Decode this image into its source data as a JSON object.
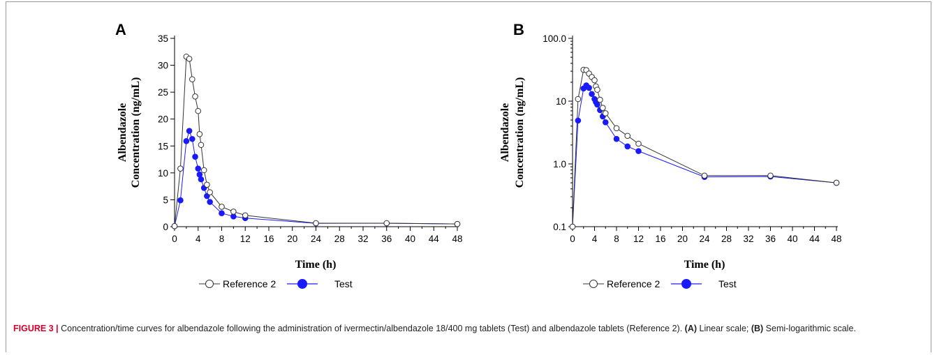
{
  "chart_data": [
    {
      "type": "line",
      "panel": "A",
      "yscale": "linear",
      "xlabel": "Time (h)",
      "ylabel": [
        "Albendazole",
        "Concentration (ng/mL)"
      ],
      "xlim": [
        0,
        48
      ],
      "ylim": [
        0,
        35
      ],
      "xticks": [
        0,
        4,
        8,
        12,
        16,
        20,
        24,
        28,
        32,
        36,
        40,
        44,
        48
      ],
      "yticks": [
        0,
        5,
        10,
        15,
        20,
        25,
        30,
        35
      ],
      "ytick_labels": [
        "0",
        "5",
        "10",
        "15",
        "20",
        "25",
        "30",
        "35"
      ],
      "legend_position": "bottom",
      "series": [
        {
          "name": "Reference 2",
          "marker": "open-circle",
          "color": "#333333",
          "x": [
            0,
            1,
            2,
            2.5,
            3,
            3.5,
            4,
            4.25,
            4.5,
            5,
            5.5,
            6,
            8,
            10,
            12,
            24,
            36,
            48
          ],
          "y": [
            0.1,
            10.8,
            31.6,
            31.2,
            27.4,
            24.2,
            21.5,
            17.2,
            15.2,
            10.5,
            7.8,
            6.4,
            3.7,
            2.8,
            2.1,
            0.65,
            0.65,
            0.5
          ]
        },
        {
          "name": "Test",
          "marker": "filled-circle",
          "color": "#1a1aff",
          "x": [
            0,
            1,
            2,
            2.5,
            3,
            3.5,
            4,
            4.25,
            4.5,
            5,
            5.5,
            6,
            8,
            10,
            12,
            24,
            36,
            48
          ],
          "y": [
            0.1,
            4.9,
            15.9,
            17.8,
            16.3,
            13,
            10.8,
            9.7,
            8.8,
            7.2,
            5.7,
            4.6,
            2.5,
            1.9,
            1.6,
            0.62,
            0.63,
            0.5
          ]
        }
      ]
    },
    {
      "type": "line",
      "panel": "B",
      "yscale": "log",
      "xlabel": "Time (h)",
      "ylabel": [
        "Albendazole",
        "Concentration (ng/mL)"
      ],
      "xlim": [
        0,
        48
      ],
      "ylim": [
        0.1,
        100
      ],
      "xticks": [
        0,
        4,
        8,
        12,
        16,
        20,
        24,
        28,
        32,
        36,
        40,
        44,
        48
      ],
      "yticks": [
        0.1,
        1,
        10,
        100
      ],
      "ytick_labels": [
        "0.1",
        "1.0",
        "10",
        "100.0"
      ],
      "legend_position": "bottom",
      "series": [
        {
          "name": "Reference 2",
          "marker": "open-circle",
          "color": "#333333",
          "x": [
            0,
            1,
            2,
            2.5,
            3,
            3.5,
            4,
            4.25,
            4.5,
            5,
            5.5,
            6,
            8,
            10,
            12,
            24,
            36,
            48
          ],
          "y": [
            0.1,
            10.8,
            31.6,
            31.2,
            27.4,
            24.2,
            21.5,
            17.2,
            15.2,
            10.5,
            7.8,
            6.4,
            3.7,
            2.8,
            2.1,
            0.65,
            0.65,
            0.5
          ]
        },
        {
          "name": "Test",
          "marker": "filled-circle",
          "color": "#1a1aff",
          "x": [
            0,
            1,
            2,
            2.5,
            3,
            3.5,
            4,
            4.25,
            4.5,
            5,
            5.5,
            6,
            8,
            10,
            12,
            24,
            36,
            48
          ],
          "y": [
            0.1,
            4.9,
            15.9,
            17.8,
            16.3,
            13,
            10.8,
            9.7,
            8.8,
            7.2,
            5.7,
            4.6,
            2.5,
            1.9,
            1.6,
            0.62,
            0.63,
            0.5
          ]
        }
      ]
    }
  ],
  "caption": {
    "label": "FIGURE 3 |",
    "text": " Concentration/time curves for albendazole following the administration of ivermectin/albendazole 18/400 mg tablets (Test) and albendazole tablets (Reference 2). ",
    "part_a_label": "(A)",
    "part_a_text": " Linear scale; ",
    "part_b_label": "(B)",
    "part_b_text": " Semi-logarithmic scale."
  }
}
